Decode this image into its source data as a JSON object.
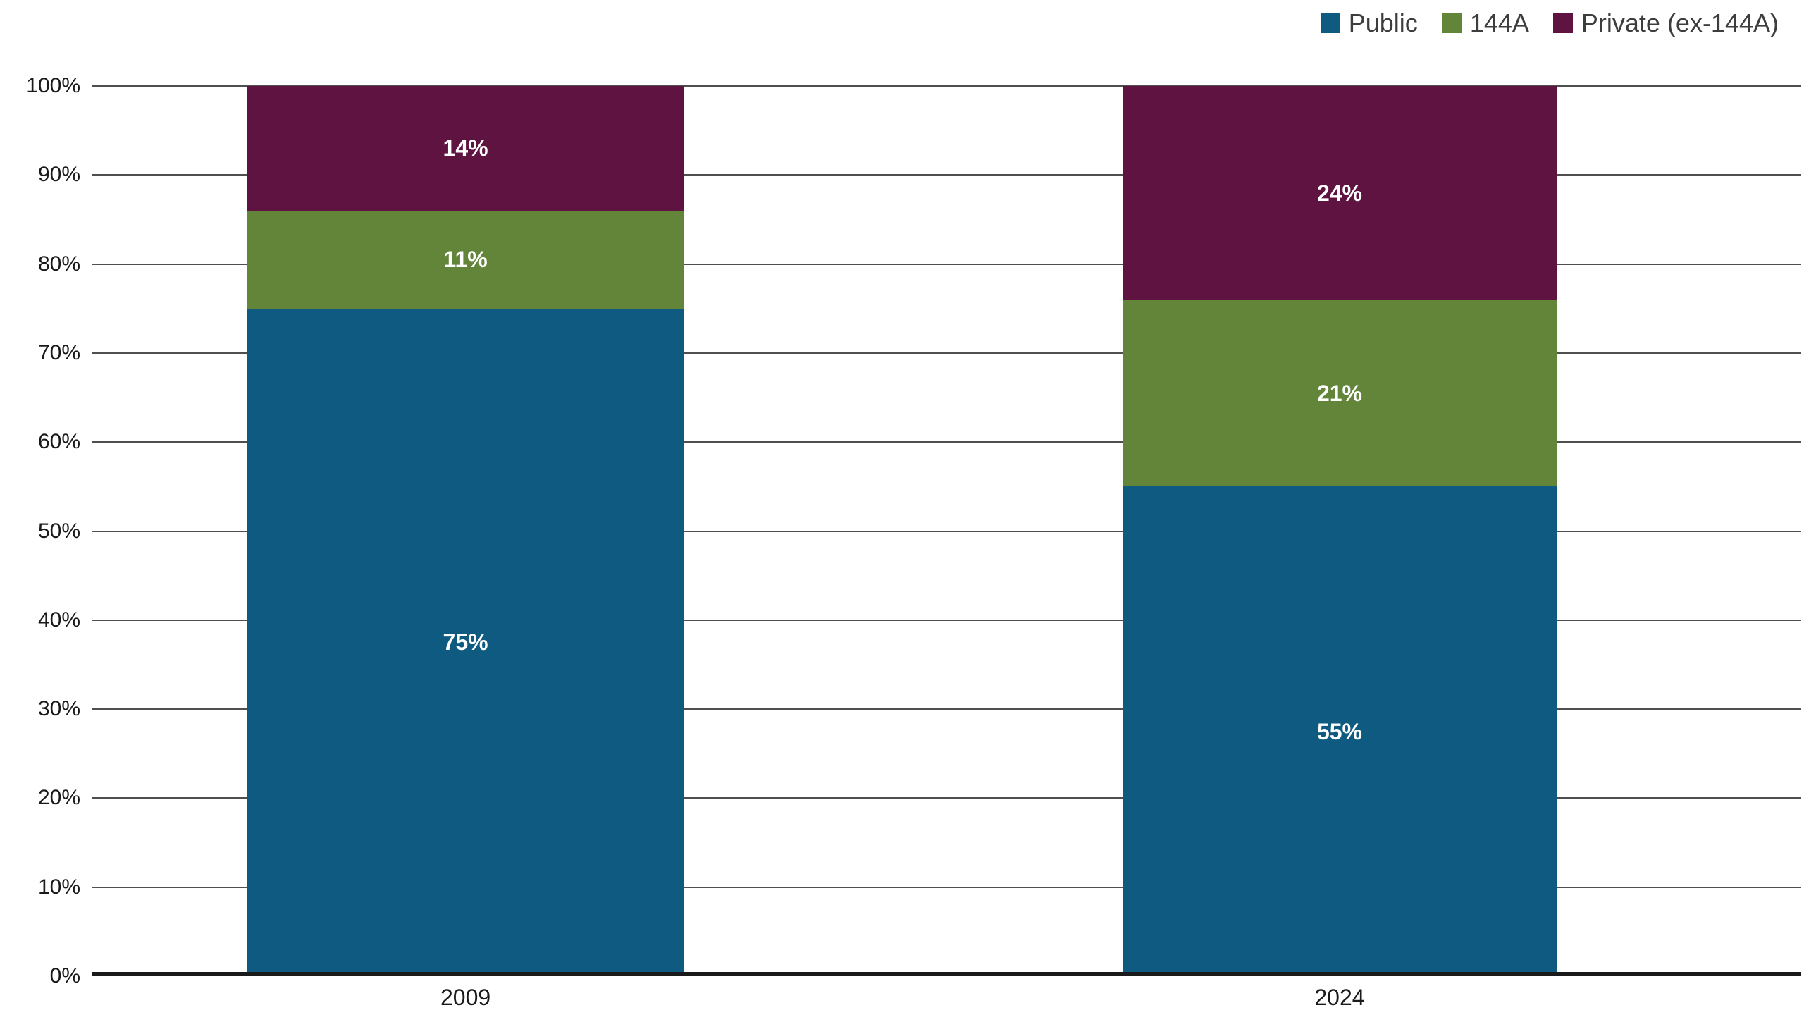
{
  "chart_data": {
    "type": "bar",
    "stacked": true,
    "title": "",
    "xlabel": "",
    "ylabel": "",
    "categories": [
      "2009",
      "2024"
    ],
    "series": [
      {
        "name": "Public",
        "color": "#0e5a80",
        "values": [
          75,
          55
        ]
      },
      {
        "name": "144A",
        "color": "#62853a",
        "values": [
          11,
          21
        ]
      },
      {
        "name": "Private (ex-144A)",
        "color": "#5e1340",
        "values": [
          14,
          24
        ]
      }
    ],
    "value_suffix": "%",
    "ylim": [
      0,
      100
    ],
    "yticks": [
      0,
      10,
      20,
      30,
      40,
      50,
      60,
      70,
      80,
      90,
      100
    ],
    "ytick_suffix": "%",
    "legend_position": "top-right",
    "grid": true,
    "bar_positions": [
      {
        "left_pct": 9.07,
        "width_pct": 25.6
      },
      {
        "left_pct": 60.3,
        "width_pct": 25.4
      }
    ]
  }
}
